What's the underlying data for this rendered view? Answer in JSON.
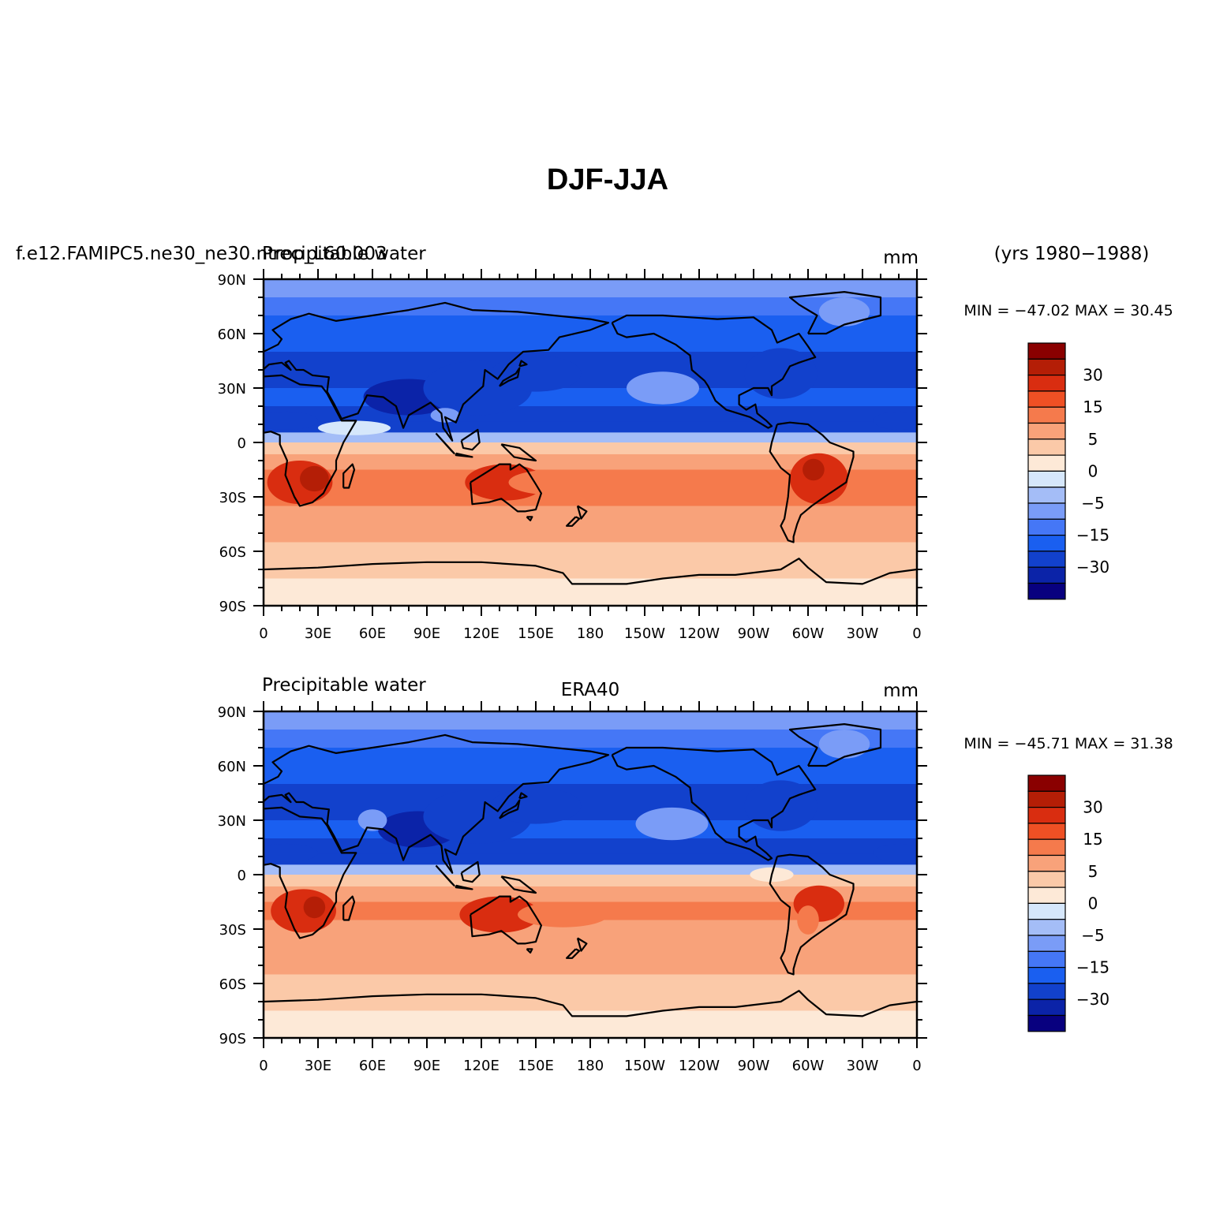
{
  "figure": {
    "title": "DJF-JJA",
    "period": "(yrs 1980−1988)"
  },
  "colors": {
    "levels_palette": [
      "#08007f",
      "#0b23a8",
      "#1241cc",
      "#1a5ff0",
      "#4577f6",
      "#7a9cf7",
      "#a4bdf7",
      "#d6e7fb",
      "#fde9d7",
      "#fbc9a8",
      "#f8a27a",
      "#f57a4c",
      "#ef5024",
      "#d92d10",
      "#b41e06",
      "#8a0000"
    ],
    "coast": "#000000"
  },
  "panels": [
    {
      "left_label": "f.e12.FAMIPC5.ne30_ne30.ntrop_L60.003",
      "variable": "Precipitable water",
      "units": "mm",
      "min_max": "MIN = −47.02  MAX =   30.45"
    },
    {
      "left_label": "Precipitable water",
      "center_label": "ERA40",
      "units": "mm",
      "min_max": "MIN = −45.71  MAX =   31.38"
    }
  ],
  "chart_data": [
    {
      "type": "heatmap",
      "title": "DJF-JJA",
      "subtitle": "f.e12.FAMIPC5.ne30_ne30.ntrop_L60.003",
      "variable": "Precipitable water",
      "units": "mm",
      "min": -47.02,
      "max": 30.45,
      "x_ticks": [
        "0",
        "30E",
        "60E",
        "90E",
        "120E",
        "150E",
        "180",
        "150W",
        "120W",
        "90W",
        "60W",
        "30W",
        "0"
      ],
      "y_ticks": [
        "90N",
        "60N",
        "30N",
        "0",
        "30S",
        "60S",
        "90S"
      ],
      "xlim": [
        0,
        360
      ],
      "ylim": [
        -90,
        90
      ],
      "colorbar_labels": [
        "30",
        "15",
        "5",
        "0",
        "−5",
        "−15",
        "−30"
      ],
      "zonal_mean_profile": {
        "lat": [
          85,
          75,
          65,
          55,
          45,
          35,
          25,
          15,
          8,
          3,
          -3,
          -10,
          -20,
          -30,
          -40,
          -50,
          -60,
          -70,
          -80
        ],
        "value": [
          -6,
          -10,
          -15,
          -18,
          -20,
          -21,
          -18,
          -22,
          -25,
          -2,
          5,
          9,
          13,
          11,
          8,
          6,
          4,
          3,
          1
        ]
      }
    },
    {
      "type": "heatmap",
      "title": "ERA40",
      "variable": "Precipitable water",
      "units": "mm",
      "min": -45.71,
      "max": 31.38,
      "x_ticks": [
        "0",
        "30E",
        "60E",
        "90E",
        "120E",
        "150E",
        "180",
        "150W",
        "120W",
        "90W",
        "60W",
        "30W",
        "0"
      ],
      "y_ticks": [
        "90N",
        "60N",
        "30N",
        "0",
        "30S",
        "60S",
        "90S"
      ],
      "xlim": [
        0,
        360
      ],
      "ylim": [
        -90,
        90
      ],
      "colorbar_labels": [
        "30",
        "15",
        "5",
        "0",
        "−5",
        "−15",
        "−30"
      ],
      "zonal_mean_profile": {
        "lat": [
          85,
          75,
          65,
          55,
          45,
          35,
          25,
          15,
          8,
          3,
          -3,
          -10,
          -20,
          -30,
          -40,
          -50,
          -60,
          -70,
          -80
        ],
        "value": [
          -6,
          -10,
          -15,
          -18,
          -20,
          -21,
          -18,
          -22,
          -25,
          -3,
          5,
          9,
          12,
          10,
          8,
          6,
          4,
          3,
          1
        ]
      }
    }
  ]
}
